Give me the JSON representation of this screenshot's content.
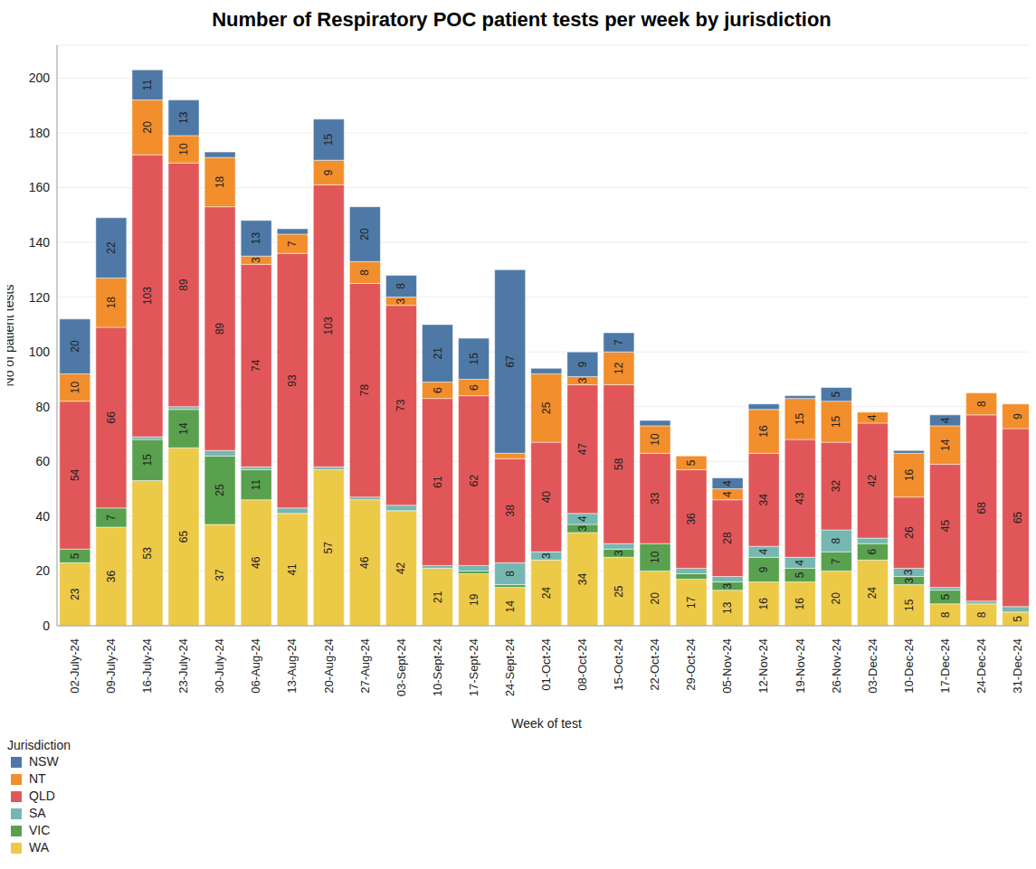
{
  "chart_data": {
    "type": "bar",
    "title": "Number of Respiratory POC patient tests per week by jurisdiction",
    "x_label": "Week of test",
    "y_label": "No of patient tests",
    "legend_title": "Jurisdiction",
    "stacked": true,
    "data_labels": true,
    "grid": true,
    "legend": "bottom left",
    "categories": [
      "02-July-24",
      "09-July-24",
      "16-July-24",
      "23-July-24",
      "30-July-24",
      "06-Aug-24",
      "13-Aug-24",
      "20-Aug-24",
      "27-Aug-24",
      "03-Sept-24",
      "10-Sept-24",
      "17-Sept-24",
      "24-Sept-24",
      "01-Oct-24",
      "08-Oct-24",
      "15-Oct-24",
      "22-Oct-24",
      "29-Oct-24",
      "05-Nov-24",
      "12-Nov-24",
      "19-Nov-24",
      "26-Nov-24",
      "03-Dec-24",
      "10-Dec-24",
      "17-Dec-24",
      "24-Dec-24",
      "31-Dec-24"
    ],
    "ylim": [
      0,
      212
    ],
    "yticks": [
      0,
      20,
      40,
      60,
      80,
      100,
      120,
      140,
      160,
      180,
      200
    ],
    "series": [
      {
        "name": "NSW",
        "color": "#4e79a7",
        "values": [
          20,
          22,
          11,
          13,
          2,
          13,
          2,
          15,
          20,
          8,
          21,
          15,
          67,
          2,
          9,
          7,
          2,
          0,
          4,
          2,
          1,
          5,
          0,
          1,
          4,
          0,
          0
        ]
      },
      {
        "name": "NT",
        "color": "#f28e2b",
        "values": [
          10,
          18,
          20,
          10,
          18,
          3,
          7,
          9,
          8,
          3,
          6,
          6,
          2,
          25,
          3,
          12,
          10,
          5,
          4,
          16,
          15,
          15,
          4,
          16,
          14,
          8,
          9
        ]
      },
      {
        "name": "QLD",
        "color": "#e15759",
        "values": [
          54,
          66,
          103,
          89,
          89,
          74,
          93,
          103,
          78,
          73,
          61,
          62,
          38,
          40,
          47,
          58,
          33,
          36,
          28,
          34,
          43,
          32,
          42,
          26,
          45,
          68,
          65
        ]
      },
      {
        "name": "SA",
        "color": "#76b7b2",
        "values": [
          0,
          0,
          1,
          1,
          2,
          1,
          2,
          1,
          1,
          2,
          1,
          2,
          8,
          3,
          4,
          2,
          0,
          2,
          2,
          4,
          4,
          8,
          2,
          3,
          1,
          1,
          2
        ]
      },
      {
        "name": "VIC",
        "color": "#59a14f",
        "values": [
          5,
          7,
          15,
          14,
          25,
          11,
          0,
          0,
          0,
          0,
          0,
          1,
          1,
          0,
          3,
          3,
          10,
          2,
          3,
          9,
          5,
          7,
          6,
          3,
          5,
          0,
          0
        ]
      },
      {
        "name": "WA",
        "color": "#edc948",
        "values": [
          23,
          36,
          53,
          65,
          37,
          46,
          41,
          57,
          46,
          42,
          21,
          19,
          14,
          24,
          34,
          25,
          20,
          17,
          13,
          16,
          16,
          20,
          24,
          15,
          8,
          8,
          5
        ]
      }
    ]
  }
}
